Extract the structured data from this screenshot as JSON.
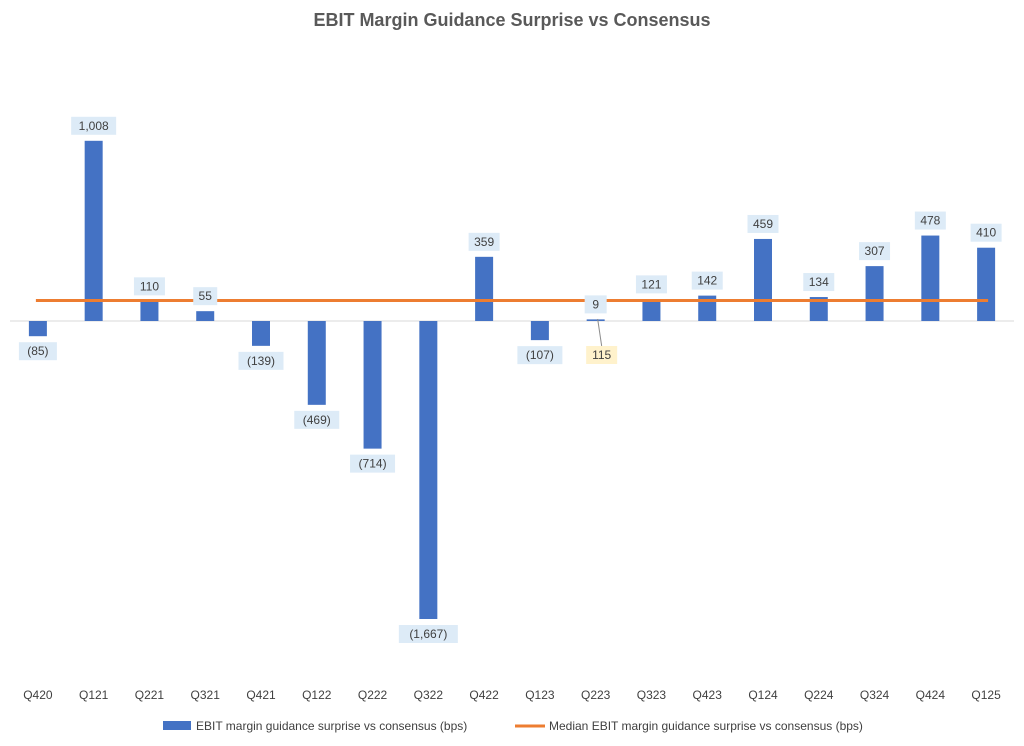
{
  "chart_data": {
    "type": "bar",
    "title": "EBIT Margin Guidance Surprise vs Consensus",
    "categories": [
      "Q420",
      "Q121",
      "Q221",
      "Q321",
      "Q421",
      "Q122",
      "Q222",
      "Q322",
      "Q422",
      "Q123",
      "Q223",
      "Q323",
      "Q423",
      "Q124",
      "Q224",
      "Q324",
      "Q424",
      "Q125"
    ],
    "series": [
      {
        "name": "EBIT margin guidance surprise vs consensus (bps)",
        "type": "bar",
        "color": "#4472C4",
        "values": [
          -85,
          1008,
          110,
          55,
          -139,
          -469,
          -714,
          -1667,
          359,
          -107,
          9,
          121,
          142,
          459,
          134,
          307,
          478,
          410
        ],
        "labels": [
          "(85)",
          "1,008",
          "110",
          "55",
          "(139)",
          "(469)",
          "(714)",
          "(1,667)",
          "359",
          "(107)",
          "9",
          "121",
          "142",
          "459",
          "134",
          "307",
          "478",
          "410"
        ]
      },
      {
        "name": "Median EBIT margin guidance surprise vs consensus (bps)",
        "type": "line",
        "color": "#ED7D31",
        "value": 115,
        "label": "115"
      }
    ],
    "label_bg": "#DDEBF7",
    "median_label_bg": "#FFF2CC",
    "ylim": [
      -1900,
      1150
    ],
    "grid": false,
    "legend": "bottom"
  }
}
